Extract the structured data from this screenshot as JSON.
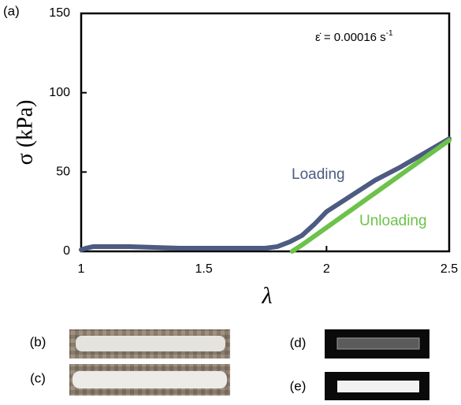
{
  "chart_data": {
    "type": "line",
    "panel_label": "(a)",
    "annotation": {
      "text": "ε̇ = 0.00016 s",
      "superscript": "-1"
    },
    "x_label": "λ",
    "y_label": "σ (kPa)",
    "xlim": [
      1,
      2.5
    ],
    "xticks": [
      1,
      1.5,
      2,
      2.5
    ],
    "ylim": [
      0,
      150
    ],
    "yticks": [
      0,
      50,
      100,
      150
    ],
    "series": [
      {
        "name": "Loading",
        "color": "#4d5b82",
        "x": [
          1,
          1.02,
          1.05,
          1.1,
          1.2,
          1.3,
          1.4,
          1.5,
          1.6,
          1.7,
          1.75,
          1.8,
          1.85,
          1.9,
          1.95,
          2.0,
          2.1,
          2.2,
          2.3,
          2.4,
          2.5
        ],
        "values": [
          1,
          2,
          3,
          3,
          3,
          2.5,
          2,
          2,
          2,
          2,
          2,
          3,
          6,
          10,
          17,
          25,
          35,
          45,
          53,
          62,
          71
        ]
      },
      {
        "name": "Unloading",
        "color": "#6cc24a",
        "x": [
          1.86,
          1.9,
          2.0,
          2.1,
          2.2,
          2.3,
          2.4,
          2.5
        ],
        "values": [
          0,
          4,
          15,
          26,
          37,
          48,
          59,
          70
        ]
      }
    ]
  },
  "photo_labels": [
    "(b)",
    "(c)",
    "(d)",
    "(e)"
  ]
}
